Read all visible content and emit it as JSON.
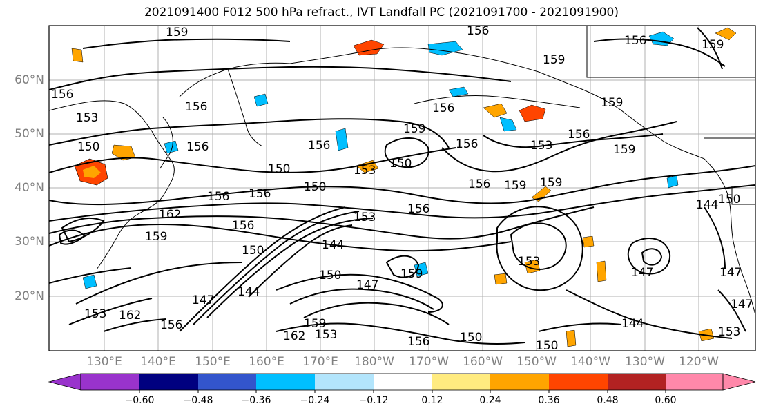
{
  "title": "2021091400 F012 500 hPa refract., IVT Landfall PC (2021091700 - 2021091900)",
  "map": {
    "lat_labels": [
      "60°N",
      "50°N",
      "40°N",
      "30°N",
      "20°N"
    ],
    "lon_labels": [
      "130°E",
      "140°E",
      "150°E",
      "160°E",
      "170°E",
      "180°W",
      "170°W",
      "160°W",
      "150°W",
      "140°W",
      "130°W",
      "120°W"
    ],
    "contour_labels": [
      "159",
      "156",
      "159",
      "156",
      "159",
      "159",
      "156",
      "153",
      "156",
      "150",
      "156",
      "156",
      "153",
      "150",
      "156",
      "159",
      "156",
      "156",
      "150",
      "156",
      "153",
      "150",
      "156",
      "153",
      "159",
      "156",
      "156",
      "159",
      "159",
      "150",
      "153",
      "147",
      "162",
      "159",
      "156",
      "150",
      "144",
      "144",
      "147",
      "150",
      "147",
      "153",
      "162",
      "156",
      "162",
      "159",
      "147",
      "153",
      "144",
      "150",
      "159",
      "147",
      "144",
      "150",
      "156",
      "153"
    ],
    "colors": {
      "land_line": "#000000",
      "contour": "#000000",
      "grid": "#b0b0b0",
      "axis_label": "#808080"
    }
  },
  "colorbar": {
    "tick_labels": [
      "−0.60",
      "−0.48",
      "−0.36",
      "−0.24",
      "−0.12",
      "0.12",
      "0.24",
      "0.36",
      "0.48",
      "0.60"
    ],
    "colors": [
      "#9933cc",
      "#000080",
      "#3355cc",
      "#00bfff",
      "#b3e5fc",
      "#ffffff",
      "#ffeb80",
      "#ffa500",
      "#ff4500",
      "#b22222",
      "#ff88aa"
    ]
  }
}
